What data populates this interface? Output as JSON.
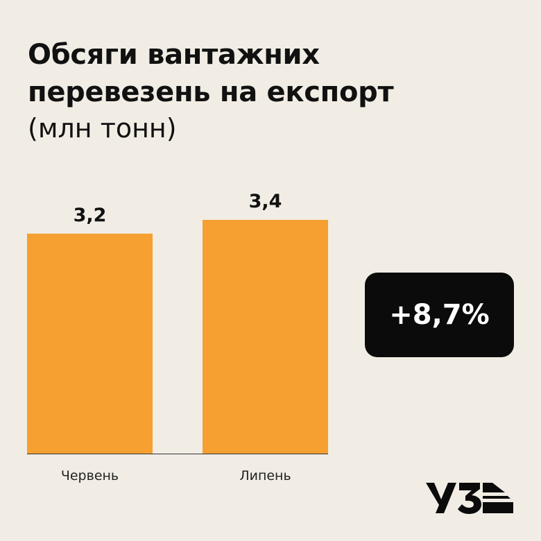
{
  "title_lines": [
    "Обсяги вантажних",
    "перевезень на експорт"
  ],
  "subtitle": "(млн тонн)",
  "change_badge": "+8,7%",
  "logo_text": "УЗ",
  "colors": {
    "bar": "#f5a031",
    "background": "#f1ede5",
    "badge": "#0b0b0b"
  },
  "chart_data": {
    "type": "bar",
    "title": "Обсяги вантажних перевезень на експорт",
    "subtitle": "(млн тонн)",
    "categories": [
      "Червень",
      "Липень"
    ],
    "values": [
      3.2,
      3.4
    ],
    "value_labels": [
      "3,2",
      "3,4"
    ],
    "ylim": [
      0,
      3.4
    ],
    "grid": false
  }
}
